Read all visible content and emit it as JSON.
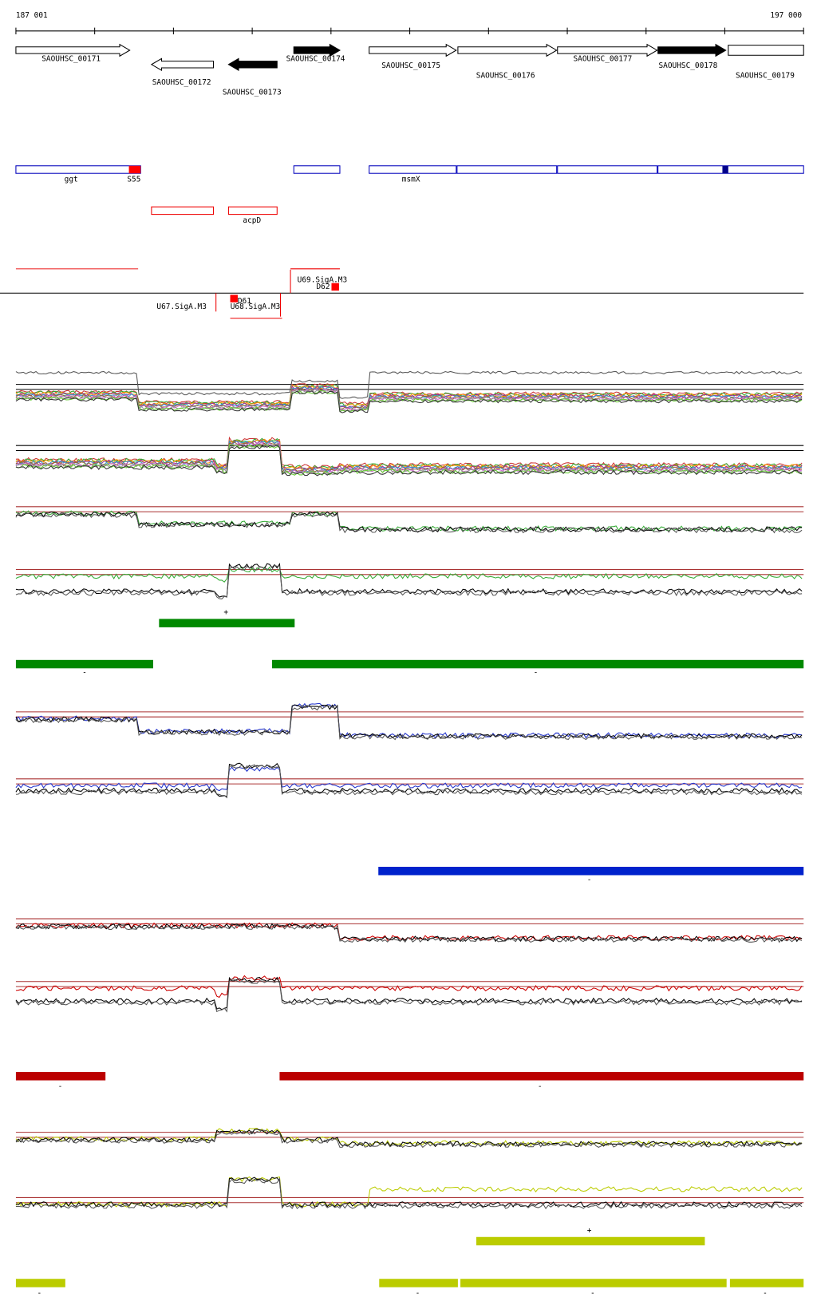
{
  "ruler": {
    "start": "187 001",
    "end": "197 000"
  },
  "genes": [
    "SAOUHSC_00171",
    "SAOUHSC_00172",
    "SAOUHSC_00173",
    "SAOUHSC_00174",
    "SAOUHSC_00175",
    "SAOUHSC_00176",
    "SAOUHSC_00177",
    "SAOUHSC_00178",
    "SAOUHSC_00179"
  ],
  "features": [
    "ggt",
    "S55",
    "msmX",
    "acpD"
  ],
  "promoters": [
    "U69.SigA.M3",
    "D62",
    "U67.SigA.M3",
    "D61",
    "U68.SigA.M3"
  ],
  "strand_labels": [
    "+",
    "-",
    "-",
    "-",
    "-",
    "-",
    "+",
    "-",
    "-",
    "-",
    "-"
  ]
}
